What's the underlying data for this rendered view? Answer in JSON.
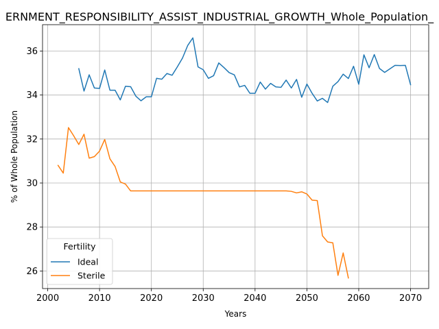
{
  "chart_data": {
    "type": "line",
    "title": "ERNMENT_RESPONSIBILITY_ASSIST_INDUSTRIAL_GROWTH_Whole_Population_",
    "xlabel": "Years",
    "ylabel": "% of Whole Population",
    "xlim": [
      1999,
      2073.5
    ],
    "ylim": [
      25.2,
      37.2
    ],
    "xticks": [
      2000,
      2010,
      2020,
      2030,
      2040,
      2050,
      2060,
      2070
    ],
    "yticks": [
      26,
      28,
      30,
      32,
      34,
      36
    ],
    "grid": true,
    "legend": {
      "title": "Fertility",
      "placement": "lower-left"
    },
    "series": [
      {
        "name": "Ideal",
        "color": "#1f77b4",
        "x": [
          2006,
          2007,
          2008,
          2009,
          2010,
          2011,
          2012,
          2013,
          2014,
          2015,
          2016,
          2017,
          2018,
          2019,
          2020,
          2021,
          2022,
          2023,
          2024,
          2025,
          2026,
          2027,
          2028,
          2029,
          2030,
          2031,
          2032,
          2033,
          2034,
          2035,
          2036,
          2037,
          2038,
          2039,
          2040,
          2041,
          2042,
          2043,
          2044,
          2045,
          2046,
          2047,
          2048,
          2049,
          2050,
          2051,
          2052,
          2053,
          2054,
          2055,
          2056,
          2057,
          2058,
          2059,
          2060,
          2061,
          2062,
          2063,
          2064,
          2065,
          2066,
          2067,
          2068,
          2069,
          2070
        ],
        "values": [
          35.2,
          34.18,
          34.92,
          34.32,
          34.3,
          35.14,
          34.22,
          34.22,
          33.78,
          34.4,
          34.38,
          33.95,
          33.74,
          33.92,
          33.92,
          34.76,
          34.72,
          34.98,
          34.9,
          35.28,
          35.68,
          36.25,
          36.6,
          35.28,
          35.15,
          34.76,
          34.88,
          35.46,
          35.25,
          35.02,
          34.92,
          34.37,
          34.44,
          34.08,
          34.08,
          34.59,
          34.27,
          34.53,
          34.37,
          34.35,
          34.68,
          34.32,
          34.71,
          33.9,
          34.5,
          34.08,
          33.73,
          33.85,
          33.66,
          34.4,
          34.61,
          34.95,
          34.75,
          35.31,
          34.49,
          35.83,
          35.24,
          35.84,
          35.21,
          35.03,
          35.19,
          35.35,
          35.34,
          35.35,
          34.47
        ]
      },
      {
        "name": "Sterile",
        "color": "#ff7f0e",
        "x": [
          2002,
          2003,
          2004,
          2005,
          2006,
          2007,
          2008,
          2009,
          2010,
          2011,
          2012,
          2013,
          2014,
          2015,
          2016,
          2017,
          2018,
          2019,
          2020,
          2021,
          2022,
          2023,
          2024,
          2025,
          2026,
          2027,
          2028,
          2029,
          2030,
          2031,
          2032,
          2033,
          2034,
          2035,
          2036,
          2037,
          2038,
          2039,
          2040,
          2041,
          2042,
          2043,
          2044,
          2045,
          2046,
          2047,
          2048,
          2049,
          2050,
          2051,
          2052,
          2053,
          2054,
          2055,
          2056,
          2057,
          2058
        ],
        "values": [
          30.8,
          30.45,
          32.52,
          32.15,
          31.75,
          32.22,
          31.13,
          31.2,
          31.45,
          31.98,
          31.1,
          30.75,
          30.05,
          29.95,
          29.64,
          29.64,
          29.64,
          29.64,
          29.64,
          29.64,
          29.64,
          29.64,
          29.64,
          29.64,
          29.64,
          29.64,
          29.64,
          29.64,
          29.64,
          29.64,
          29.64,
          29.64,
          29.64,
          29.64,
          29.64,
          29.64,
          29.64,
          29.64,
          29.64,
          29.64,
          29.64,
          29.64,
          29.64,
          29.64,
          29.64,
          29.62,
          29.55,
          29.6,
          29.5,
          29.22,
          29.2,
          27.6,
          27.32,
          27.28,
          25.8,
          26.82,
          25.68
        ]
      }
    ]
  }
}
